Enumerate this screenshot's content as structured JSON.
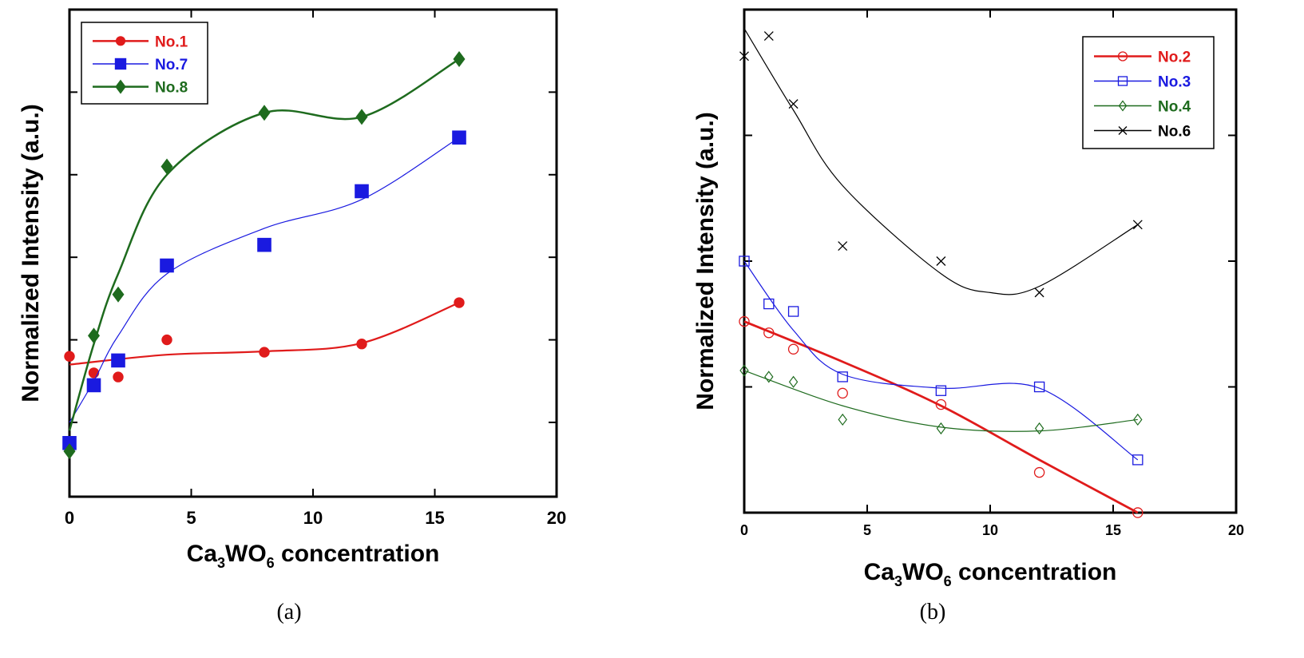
{
  "colors": {
    "red": "#e01b1b",
    "blue": "#1a1ae0",
    "green": "#1e6b1e",
    "black": "#000000"
  },
  "chart_data": [
    {
      "panel": "a",
      "caption": "(a)",
      "type": "scatter",
      "xlabel": "concentration",
      "xlabel_chem": {
        "pre": "Ca",
        "sub1": "3",
        "mid": "WO",
        "sub2": "6"
      },
      "ylabel": "Normalized Intensity (a.u.)",
      "xlim": [
        0,
        20
      ],
      "ylim": [
        0.1,
        6.0
      ],
      "xticks": [
        0,
        5,
        10,
        15,
        20
      ],
      "yticks": [
        1,
        2,
        3,
        4,
        5
      ],
      "ytick_labels_shown": false,
      "legend_position": "top-left",
      "series": [
        {
          "name": "No.1",
          "color": "red",
          "marker": "circle-filled",
          "fit_width": 2.2,
          "x": [
            0,
            1,
            2,
            4,
            8,
            12,
            16
          ],
          "y": [
            1.8,
            1.6,
            1.55,
            2.0,
            1.85,
            1.95,
            2.45
          ],
          "fit": [
            [
              0,
              1.7
            ],
            [
              4,
              1.82
            ],
            [
              8,
              1.86
            ],
            [
              12,
              1.96
            ],
            [
              16,
              2.45
            ]
          ]
        },
        {
          "name": "No.7",
          "color": "blue",
          "marker": "square-filled",
          "fit_width": 1.2,
          "x": [
            0,
            1,
            2,
            4,
            8,
            12,
            16
          ],
          "y": [
            0.75,
            1.45,
            1.75,
            2.9,
            3.15,
            3.8,
            4.45
          ],
          "fit": [
            [
              0,
              1.0
            ],
            [
              1,
              1.5
            ],
            [
              2,
              2.05
            ],
            [
              4,
              2.8
            ],
            [
              8,
              3.35
            ],
            [
              12,
              3.7
            ],
            [
              16,
              4.45
            ]
          ]
        },
        {
          "name": "No.8",
          "color": "green",
          "marker": "diamond-filled",
          "fit_width": 2.5,
          "x": [
            0,
            1,
            2,
            4,
            8,
            12,
            16
          ],
          "y": [
            0.65,
            2.05,
            2.55,
            4.1,
            4.75,
            4.7,
            5.4
          ],
          "fit": [
            [
              0,
              0.9
            ],
            [
              1,
              1.95
            ],
            [
              2,
              2.8
            ],
            [
              4,
              4.0
            ],
            [
              8,
              4.75
            ],
            [
              12,
              4.7
            ],
            [
              16,
              5.4
            ]
          ]
        }
      ]
    },
    {
      "panel": "b",
      "caption": "(b)",
      "type": "scatter",
      "xlabel": "concentration",
      "xlabel_chem": {
        "pre": "Ca",
        "sub1": "3",
        "mid": "WO",
        "sub2": "6"
      },
      "ylabel": "Normalized Intensity (a.u.)",
      "xlim": [
        0,
        20
      ],
      "ylim": [
        0,
        4.0
      ],
      "xticks": [
        0,
        5,
        10,
        15,
        20
      ],
      "yticks": [
        1,
        2,
        3
      ],
      "ytick_labels_shown": false,
      "legend_position": "top-right",
      "series": [
        {
          "name": "No.2",
          "color": "red",
          "marker": "circle-open",
          "fit_width": 2.8,
          "x": [
            0,
            1,
            2,
            4,
            8,
            12,
            16
          ],
          "y": [
            1.52,
            1.43,
            1.3,
            0.95,
            0.86,
            0.32,
            0.0
          ],
          "fit": [
            [
              0,
              1.52
            ],
            [
              4,
              1.2
            ],
            [
              8,
              0.85
            ],
            [
              12,
              0.42
            ],
            [
              16,
              0.0
            ]
          ]
        },
        {
          "name": "No.3",
          "color": "blue",
          "marker": "square-open",
          "fit_width": 1.2,
          "x": [
            0,
            1,
            2,
            4,
            8,
            12,
            16
          ],
          "y": [
            2.0,
            1.66,
            1.6,
            1.08,
            0.97,
            1.0,
            0.42
          ],
          "fit": [
            [
              0,
              2.0
            ],
            [
              2,
              1.45
            ],
            [
              4,
              1.1
            ],
            [
              8,
              0.99
            ],
            [
              12,
              0.99
            ],
            [
              16,
              0.42
            ]
          ]
        },
        {
          "name": "No.4",
          "color": "green",
          "marker": "diamond-open",
          "fit_width": 1.2,
          "x": [
            0,
            1,
            2,
            4,
            8,
            12,
            16
          ],
          "y": [
            1.13,
            1.08,
            1.04,
            0.74,
            0.67,
            0.67,
            0.74
          ],
          "fit": [
            [
              0,
              1.13
            ],
            [
              4,
              0.85
            ],
            [
              8,
              0.68
            ],
            [
              12,
              0.65
            ],
            [
              16,
              0.74
            ]
          ]
        },
        {
          "name": "No.6",
          "color": "black",
          "marker": "x",
          "fit_width": 1.2,
          "x": [
            0,
            1,
            2,
            4,
            8,
            12,
            16
          ],
          "y": [
            3.63,
            3.79,
            3.25,
            2.12,
            2.0,
            1.75,
            2.29
          ],
          "fit": [
            [
              0,
              3.85
            ],
            [
              2,
              3.2
            ],
            [
              4,
              2.6
            ],
            [
              8,
              1.9
            ],
            [
              10,
              1.75
            ],
            [
              12,
              1.8
            ],
            [
              16,
              2.29
            ]
          ]
        }
      ]
    }
  ]
}
